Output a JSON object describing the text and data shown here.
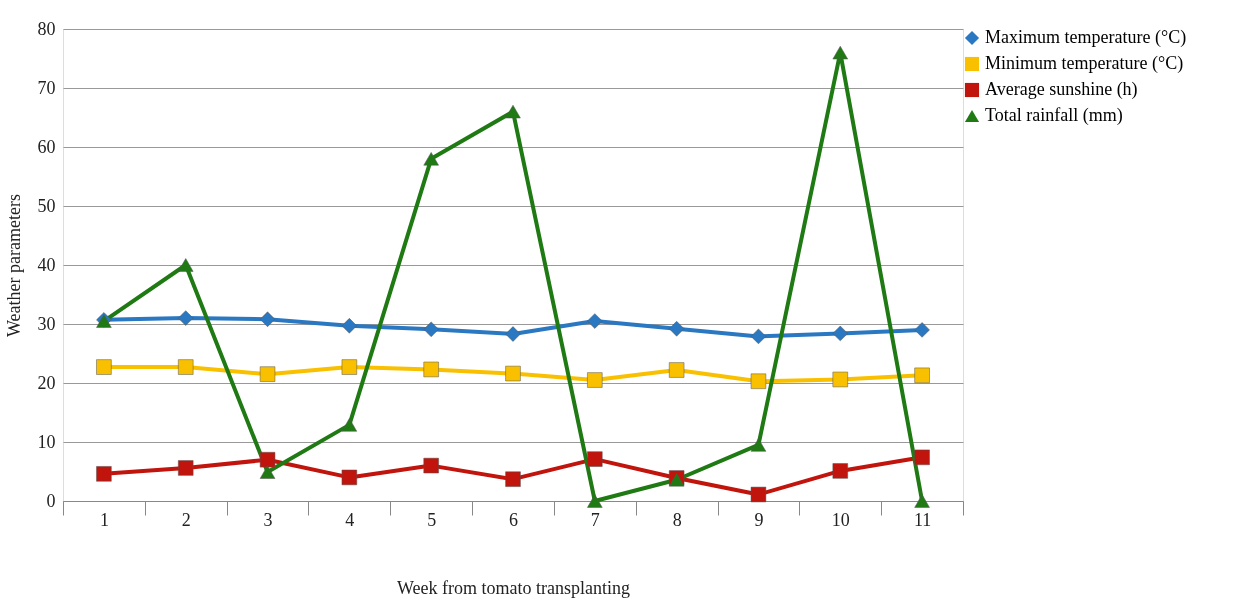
{
  "chart_data": {
    "type": "line",
    "xlabel": "Week from tomato transplanting",
    "ylabel": "Weather parameters",
    "categories": [
      "1",
      "2",
      "3",
      "4",
      "5",
      "6",
      "7",
      "8",
      "9",
      "10",
      "11"
    ],
    "series": [
      {
        "name": "Maximum temperature (°C)",
        "color": "#2a78c2",
        "marker": "diamond",
        "values": [
          30.7,
          31.0,
          30.8,
          29.7,
          29.1,
          28.3,
          30.5,
          29.2,
          27.9,
          28.4,
          29.0
        ]
      },
      {
        "name": "Minimum temperature (°C)",
        "color": "#f9c000",
        "marker": "square",
        "values": [
          22.7,
          22.7,
          21.5,
          22.7,
          22.3,
          21.6,
          20.5,
          22.2,
          20.3,
          20.6,
          21.3
        ]
      },
      {
        "name": "Average sunshine (h)",
        "color": "#c0140c",
        "marker": "square",
        "values": [
          4.6,
          5.6,
          7.0,
          4.0,
          6.0,
          3.7,
          7.1,
          3.9,
          1.1,
          5.1,
          7.4
        ]
      },
      {
        "name": "Total rainfall (mm)",
        "color": "#1f7a14",
        "marker": "triangle",
        "values": [
          30.5,
          40,
          4.9,
          12.9,
          58,
          66,
          0,
          3.6,
          9.5,
          76,
          0
        ]
      }
    ],
    "ylim": [
      0,
      80
    ],
    "yticks": [
      0,
      10,
      20,
      30,
      40,
      50,
      60,
      70,
      80
    ],
    "grid": "y",
    "legend": "top right",
    "line_style": "solid"
  }
}
